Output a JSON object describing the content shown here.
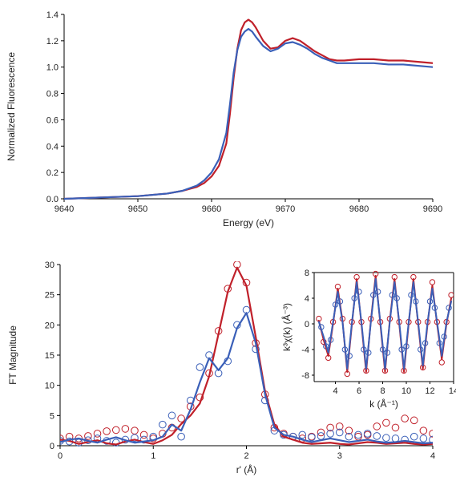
{
  "chart_data": [
    {
      "type": "line",
      "title": "",
      "xlabel": "Energy (eV)",
      "ylabel": "Normalized Fluorescence",
      "xlim": [
        9640,
        9690
      ],
      "ylim": [
        0.0,
        1.4
      ],
      "xticks": [
        9640,
        9650,
        9660,
        9670,
        9680,
        9690
      ],
      "xtick_labels": [
        "9640",
        "9650",
        "9660",
        "9670",
        "9680",
        "9690"
      ],
      "yticks": [
        0.0,
        0.2,
        0.4,
        0.6,
        0.8,
        1.0,
        1.2,
        1.4
      ],
      "ytick_labels": [
        "0.0",
        "0.2",
        "0.4",
        "0.6",
        "0.8",
        "1.0",
        "1.2",
        "1.4"
      ],
      "grid": false,
      "series": [
        {
          "color": "#c0202a",
          "style": "line",
          "x": [
            9640,
            9645,
            9650,
            9654,
            9656,
            9658,
            9659,
            9660,
            9661,
            9662,
            9662.5,
            9663,
            9663.5,
            9664,
            9664.5,
            9665,
            9665.5,
            9666,
            9667,
            9668,
            9669,
            9670,
            9671,
            9672,
            9673,
            9674,
            9675,
            9676,
            9677,
            9678,
            9680,
            9682,
            9684,
            9686,
            9688,
            9690
          ],
          "y": [
            0.0,
            0.01,
            0.02,
            0.04,
            0.06,
            0.09,
            0.12,
            0.17,
            0.25,
            0.42,
            0.65,
            0.92,
            1.14,
            1.28,
            1.34,
            1.36,
            1.34,
            1.3,
            1.2,
            1.14,
            1.15,
            1.2,
            1.22,
            1.2,
            1.16,
            1.12,
            1.09,
            1.06,
            1.05,
            1.05,
            1.06,
            1.06,
            1.05,
            1.05,
            1.04,
            1.03
          ]
        },
        {
          "color": "#3a5fb8",
          "style": "line",
          "x": [
            9640,
            9645,
            9650,
            9654,
            9656,
            9658,
            9659,
            9660,
            9661,
            9662,
            9662.5,
            9663,
            9663.5,
            9664,
            9664.5,
            9665,
            9665.5,
            9666,
            9667,
            9668,
            9669,
            9670,
            9671,
            9672,
            9673,
            9674,
            9675,
            9676,
            9677,
            9678,
            9680,
            9682,
            9684,
            9686,
            9688,
            9690
          ],
          "y": [
            0.0,
            0.01,
            0.02,
            0.04,
            0.06,
            0.1,
            0.14,
            0.2,
            0.3,
            0.5,
            0.72,
            0.96,
            1.13,
            1.23,
            1.27,
            1.29,
            1.27,
            1.23,
            1.16,
            1.12,
            1.14,
            1.18,
            1.19,
            1.17,
            1.14,
            1.1,
            1.07,
            1.05,
            1.03,
            1.03,
            1.03,
            1.03,
            1.02,
            1.02,
            1.01,
            1.0
          ]
        }
      ]
    },
    {
      "type": "line",
      "title": "",
      "xlabel": "r' (Å)",
      "ylabel": "FT Magnitude",
      "xlim": [
        0,
        4
      ],
      "ylim": [
        0,
        30
      ],
      "xticks": [
        0,
        1,
        2,
        3,
        4
      ],
      "xtick_labels": [
        "0",
        "1",
        "2",
        "3",
        "4"
      ],
      "yticks": [
        0,
        5,
        10,
        15,
        20,
        25,
        30
      ],
      "ytick_labels": [
        "0",
        "5",
        "10",
        "15",
        "20",
        "25",
        "30"
      ],
      "grid": false,
      "series": [
        {
          "color": "#c0202a",
          "style": "line",
          "x": [
            0.0,
            0.1,
            0.2,
            0.3,
            0.4,
            0.5,
            0.6,
            0.7,
            0.8,
            0.9,
            1.0,
            1.1,
            1.2,
            1.3,
            1.4,
            1.5,
            1.6,
            1.7,
            1.8,
            1.9,
            2.0,
            2.1,
            2.2,
            2.3,
            2.4,
            2.5,
            2.6,
            2.7,
            2.8,
            2.9,
            3.0,
            3.1,
            3.2,
            3.3,
            3.4,
            3.5,
            3.6,
            3.7,
            3.8,
            3.9,
            4.0
          ],
          "y": [
            1.0,
            0.8,
            0.3,
            0.6,
            0.9,
            0.4,
            0.2,
            0.7,
            1.0,
            0.6,
            0.3,
            0.9,
            1.8,
            3.6,
            5.0,
            7.0,
            11.5,
            18.5,
            25.5,
            29.5,
            26.5,
            18.0,
            9.0,
            3.5,
            1.5,
            1.0,
            0.5,
            0.3,
            0.4,
            0.5,
            0.3,
            0.2,
            0.4,
            0.6,
            0.5,
            0.3,
            0.4,
            0.5,
            0.3,
            0.2,
            0.3
          ]
        },
        {
          "color": "#3a5fb8",
          "style": "line",
          "x": [
            0.0,
            0.1,
            0.2,
            0.3,
            0.4,
            0.5,
            0.6,
            0.7,
            0.8,
            0.9,
            1.0,
            1.1,
            1.2,
            1.3,
            1.4,
            1.5,
            1.6,
            1.7,
            1.8,
            1.9,
            2.0,
            2.1,
            2.2,
            2.3,
            2.4,
            2.5,
            2.6,
            2.7,
            2.8,
            2.9,
            3.0,
            3.1,
            3.2,
            3.3,
            3.4,
            3.5,
            3.6,
            3.7,
            3.8,
            3.9,
            4.0
          ],
          "y": [
            0.6,
            1.0,
            1.2,
            0.8,
            0.5,
            1.0,
            1.4,
            0.9,
            0.5,
            0.7,
            0.9,
            1.5,
            3.5,
            2.5,
            6.0,
            10.5,
            14.5,
            12.5,
            14.5,
            19.5,
            22.0,
            17.0,
            8.5,
            3.0,
            1.8,
            1.5,
            1.0,
            0.6,
            0.9,
            1.2,
            0.9,
            0.6,
            0.8,
            1.0,
            0.7,
            0.5,
            0.6,
            0.8,
            0.6,
            0.4,
            0.5
          ]
        },
        {
          "color": "#c0202a",
          "style": "markers",
          "marker": "open-circle",
          "x": [
            0.0,
            0.1,
            0.2,
            0.3,
            0.4,
            0.5,
            0.6,
            0.7,
            0.8,
            0.9,
            1.0,
            1.1,
            1.2,
            1.3,
            1.4,
            1.5,
            1.6,
            1.7,
            1.8,
            1.9,
            2.0,
            2.1,
            2.2,
            2.3,
            2.4,
            2.5,
            2.6,
            2.7,
            2.8,
            2.9,
            3.0,
            3.1,
            3.2,
            3.3,
            3.4,
            3.5,
            3.6,
            3.7,
            3.8,
            3.9,
            4.0
          ],
          "y": [
            1.2,
            1.5,
            1.2,
            1.6,
            2.0,
            2.4,
            2.6,
            2.8,
            2.5,
            1.8,
            1.2,
            2.0,
            3.0,
            4.5,
            6.5,
            8.0,
            12.0,
            19.0,
            26.0,
            30.0,
            27.0,
            17.0,
            8.5,
            3.0,
            2.0,
            1.5,
            1.2,
            1.5,
            2.2,
            3.0,
            3.2,
            2.5,
            1.5,
            1.8,
            3.2,
            3.8,
            3.0,
            4.5,
            4.2,
            2.5,
            2.0
          ]
        },
        {
          "color": "#3a5fb8",
          "style": "markers",
          "marker": "open-circle",
          "x": [
            0.0,
            0.1,
            0.2,
            0.3,
            0.4,
            0.5,
            0.6,
            0.7,
            0.8,
            0.9,
            1.0,
            1.1,
            1.2,
            1.3,
            1.4,
            1.5,
            1.6,
            1.7,
            1.8,
            1.9,
            2.0,
            2.1,
            2.2,
            2.3,
            2.4,
            2.5,
            2.6,
            2.7,
            2.8,
            2.9,
            3.0,
            3.1,
            3.2,
            3.3,
            3.4,
            3.5,
            3.6,
            3.7,
            3.8,
            3.9,
            4.0
          ],
          "y": [
            0.8,
            0.7,
            0.5,
            0.9,
            1.2,
            0.8,
            0.5,
            1.0,
            1.3,
            1.0,
            1.5,
            3.5,
            5.0,
            1.5,
            7.5,
            13.0,
            15.0,
            12.0,
            14.0,
            20.0,
            22.5,
            16.0,
            7.5,
            2.5,
            1.8,
            1.5,
            1.8,
            1.4,
            1.6,
            2.0,
            2.2,
            1.5,
            1.8,
            2.0,
            1.6,
            1.3,
            1.2,
            1.0,
            1.5,
            1.2,
            1.0
          ]
        }
      ]
    },
    {
      "type": "line",
      "title": "",
      "xlabel": "k (Å⁻¹)",
      "ylabel": "k³χ(k)  (Å⁻³)",
      "xlim": [
        2.2,
        14
      ],
      "ylim": [
        -9,
        8
      ],
      "xticks": [
        4,
        6,
        8,
        10,
        12,
        14
      ],
      "xtick_labels": [
        "4",
        "6",
        "8",
        "10",
        "12",
        "14"
      ],
      "yticks": [
        -8,
        -4,
        0,
        4,
        8
      ],
      "ytick_labels": [
        "-8",
        "-4",
        "0",
        "4",
        "8"
      ],
      "grid": false,
      "series": [
        {
          "color": "#c0202a",
          "style": "line",
          "x": [
            2.6,
            3.0,
            3.4,
            3.8,
            4.2,
            4.6,
            5.0,
            5.4,
            5.8,
            6.2,
            6.6,
            7.0,
            7.4,
            7.8,
            8.2,
            8.6,
            9.0,
            9.4,
            9.8,
            10.2,
            10.6,
            11.0,
            11.4,
            11.8,
            12.2,
            12.6,
            13.0,
            13.4,
            13.8
          ],
          "y": [
            0.5,
            -2.5,
            -5.0,
            0.0,
            5.5,
            0.5,
            -7.5,
            0.0,
            7.0,
            0.0,
            -7.5,
            0.5,
            7.5,
            0.0,
            -7.5,
            0.5,
            7.0,
            0.0,
            -7.5,
            0.0,
            7.0,
            0.0,
            -7.0,
            0.0,
            6.0,
            0.0,
            -5.5,
            0.0,
            4.0
          ]
        },
        {
          "color": "#3a5fb8",
          "style": "line",
          "x": [
            2.6,
            3.0,
            3.4,
            3.8,
            4.2,
            4.6,
            5.0,
            5.4,
            5.8,
            6.2,
            6.6,
            7.0,
            7.4,
            7.8,
            8.2,
            8.6,
            9.0,
            9.4,
            9.8,
            10.2,
            10.6,
            11.0,
            11.4,
            11.8,
            12.2,
            12.6,
            13.0,
            13.4,
            13.8
          ],
          "y": [
            0.3,
            -2.0,
            -4.5,
            0.3,
            5.0,
            0.3,
            -7.0,
            0.3,
            6.5,
            0.3,
            -7.0,
            0.3,
            7.0,
            0.3,
            -7.0,
            0.3,
            6.5,
            0.3,
            -7.0,
            0.3,
            6.5,
            0.3,
            -6.5,
            0.3,
            5.5,
            0.3,
            -5.0,
            0.3,
            3.5
          ]
        },
        {
          "color": "#c0202a",
          "style": "markers",
          "marker": "open-circle",
          "x": [
            2.6,
            3.0,
            3.4,
            3.8,
            4.2,
            4.6,
            5.0,
            5.4,
            5.8,
            6.2,
            6.6,
            7.0,
            7.4,
            7.8,
            8.2,
            8.6,
            9.0,
            9.4,
            9.8,
            10.2,
            10.6,
            11.0,
            11.4,
            11.8,
            12.2,
            12.6,
            13.0,
            13.4,
            13.8
          ],
          "y": [
            0.8,
            -2.8,
            -5.3,
            0.3,
            5.8,
            0.8,
            -7.8,
            0.3,
            7.3,
            0.3,
            -7.3,
            0.8,
            7.8,
            0.3,
            -7.3,
            0.8,
            7.3,
            0.3,
            -7.3,
            0.3,
            7.3,
            0.3,
            -6.8,
            0.3,
            6.5,
            0.3,
            -6.0,
            0.3,
            4.5
          ]
        },
        {
          "color": "#3a5fb8",
          "style": "markers",
          "marker": "open-circle",
          "x": [
            2.8,
            3.2,
            3.6,
            4.0,
            4.4,
            4.8,
            5.2,
            5.6,
            6.0,
            6.4,
            6.8,
            7.2,
            7.6,
            8.0,
            8.4,
            8.8,
            9.2,
            9.6,
            10.0,
            10.4,
            10.8,
            11.2,
            11.6,
            12.0,
            12.4,
            12.8,
            13.2,
            13.6
          ],
          "y": [
            -0.5,
            -3.5,
            -2.5,
            3.0,
            3.5,
            -4.0,
            -5.0,
            4.0,
            5.0,
            -4.0,
            -4.5,
            4.5,
            5.0,
            -4.0,
            -4.5,
            4.5,
            4.0,
            -4.0,
            -3.5,
            4.5,
            3.5,
            -4.0,
            -3.0,
            3.5,
            2.5,
            -3.0,
            -2.0,
            2.5
          ]
        }
      ]
    }
  ]
}
